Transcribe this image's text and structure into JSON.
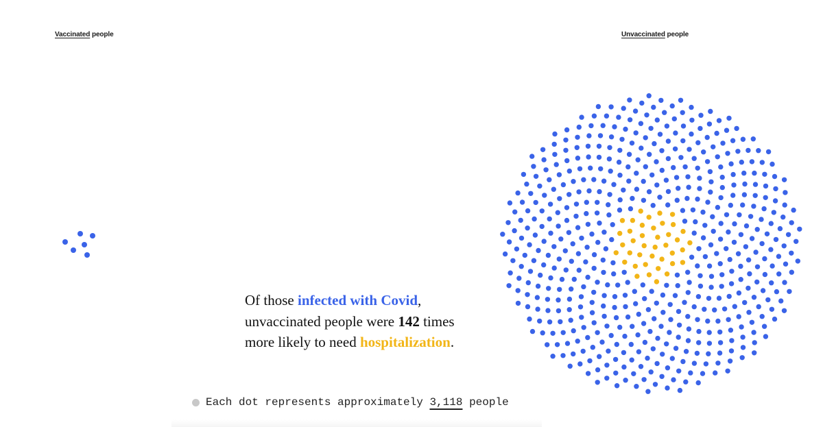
{
  "labels": {
    "vaccinated_emph": "Vaccinated",
    "vaccinated_rest": " people",
    "unvaccinated_emph": "Unvaccinated",
    "unvaccinated_rest": " people"
  },
  "statement": {
    "part1": "Of those ",
    "infected": "infected with Covid",
    "part2": ",",
    "part3": "unvaccinated people were ",
    "times": "142",
    "part4": " times",
    "part5": "more likely to need ",
    "hospitalization": "hospitalization",
    "part6": "."
  },
  "legend": {
    "prefix": "Each dot represents approximately ",
    "count": "3,118",
    "suffix": " people"
  },
  "colors": {
    "infected": "#3a63e8",
    "hospitalized": "#f2b517",
    "legend_dot": "#c8c8c8"
  },
  "chart_data": {
    "type": "dot-cluster",
    "people_per_dot": 3118,
    "groups": [
      {
        "label": "Vaccinated people",
        "infected_dots": 6,
        "hospitalized_dots": 0
      },
      {
        "label": "Unvaccinated people",
        "infected_dots": 560,
        "hospitalized_dots": 40
      }
    ]
  }
}
